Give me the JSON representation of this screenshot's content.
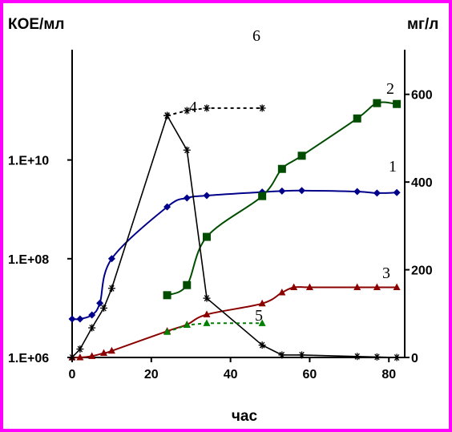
{
  "chart_data": {
    "type": "line",
    "ylabel_left": "КОЕ/мл",
    "ylabel_right": "мг/л",
    "xlabel": "час",
    "xlim": [
      0,
      84
    ],
    "xticks": [
      0,
      20,
      40,
      60,
      80
    ],
    "ylim_left_log10": [
      6,
      11
    ],
    "yticks_left": [
      {
        "label": "1.E+06",
        "value": 6
      },
      {
        "label": "1.E+08",
        "value": 8
      },
      {
        "label": "1.E+10",
        "value": 10
      }
    ],
    "ylim_right": [
      0,
      700
    ],
    "yticks_right": [
      0,
      200,
      400,
      600
    ],
    "grid": false,
    "series": [
      {
        "name": "1",
        "axis": "left",
        "color": "#00008b",
        "marker": "diamond",
        "dash": false,
        "x": [
          0,
          2,
          5,
          7,
          10,
          24,
          29,
          34,
          48,
          53,
          58,
          72,
          77,
          82
        ],
        "y": [
          6.78,
          6.78,
          6.86,
          7.1,
          8.0,
          9.05,
          9.23,
          9.28,
          9.35,
          9.37,
          9.38,
          9.36,
          9.33,
          9.34
        ]
      },
      {
        "name": "2",
        "axis": "right",
        "color": "#004d00",
        "marker": "square",
        "dash": false,
        "x": [
          24,
          29,
          34,
          48,
          53,
          58,
          72,
          77,
          82
        ],
        "y": [
          142,
          165,
          275,
          368,
          430,
          460,
          545,
          580,
          578
        ]
      },
      {
        "name": "3",
        "axis": "right",
        "color": "#8b0000",
        "marker": "triangle",
        "dash": false,
        "x": [
          0,
          2,
          5,
          8,
          10,
          24,
          29,
          34,
          48,
          53,
          56,
          60,
          72,
          77,
          82
        ],
        "y": [
          0,
          0,
          3,
          10,
          15,
          60,
          75,
          98,
          123,
          148,
          160,
          160,
          160,
          160,
          160
        ]
      },
      {
        "name": "4",
        "axis": "left",
        "color": "#000000",
        "marker": "asterisk",
        "dash": false,
        "x": [
          0,
          2,
          5,
          8,
          10,
          24,
          29,
          34,
          48,
          53,
          58,
          72,
          77,
          82
        ],
        "y": [
          6.0,
          6.17,
          6.6,
          7.0,
          7.4,
          10.9,
          10.2,
          7.2,
          6.25,
          6.05,
          6.05,
          6.02,
          6.01,
          6.0
        ]
      },
      {
        "name": "5",
        "axis": "right",
        "color": "#008000",
        "marker": "triangle",
        "dash": true,
        "x": [
          24,
          29,
          34,
          48
        ],
        "y": [
          58,
          74,
          78,
          78
        ]
      },
      {
        "name": "6",
        "axis": "left",
        "color": "#000000",
        "marker": "asterisk",
        "dash": true,
        "x": [
          24,
          29,
          34,
          48
        ],
        "y": [
          10.9,
          11.0,
          11.05,
          11.05
        ]
      }
    ]
  }
}
